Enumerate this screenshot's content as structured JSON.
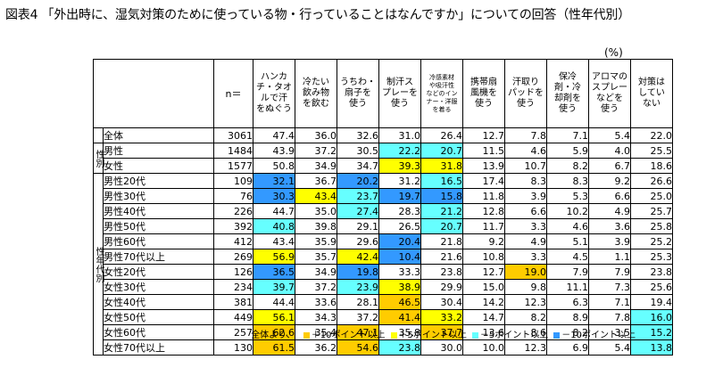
{
  "title": "図表4 「外出時に、湿気対策のために使っている物・行っていることはなんですか」についての回答（性年代別）",
  "unit": "(%)",
  "colors": {
    "plus10": "#ffcc00",
    "plus5": "#ffff00",
    "minus5": "#66ffff",
    "minus10": "#3399ff"
  },
  "chart_data": {
    "type": "table",
    "n_header": "n＝",
    "columns": [
      {
        "label": "ハンカチ・タオルで汗をぬぐう",
        "lines": [
          "ハンカ",
          "チ・タオ",
          "ルで汗",
          "をぬぐう"
        ]
      },
      {
        "label": "冷たい飲み物を飲む",
        "lines": [
          "冷たい",
          "飲み物",
          "を飲む"
        ]
      },
      {
        "label": "うちわ・扇子を使う",
        "lines": [
          "うちわ・",
          "扇子を",
          "使う"
        ]
      },
      {
        "label": "制汗スプレーを使う",
        "lines": [
          "制汗ス",
          "プレーを",
          "使う"
        ]
      },
      {
        "label": "冷感素材や吸汗性などのインナー・洋服を着る",
        "lines": [
          "冷感素材",
          "や吸汗性",
          "などのイン",
          "ナー・洋服",
          "を着る"
        ],
        "small": true
      },
      {
        "label": "携帯扇風機を使う",
        "lines": [
          "携帯扇",
          "風機を",
          "使う"
        ]
      },
      {
        "label": "汗取りパッドを使う",
        "lines": [
          "汗取り",
          "パッドを",
          "使う"
        ]
      },
      {
        "label": "保冷剤・冷却剤を使う",
        "lines": [
          "保冷",
          "剤・冷",
          "却剤を",
          "使う"
        ]
      },
      {
        "label": "アロマのスプレーなどを使う",
        "lines": [
          "アロマの",
          "スプレー",
          "などを",
          "使う"
        ]
      },
      {
        "label": "対策はしていない",
        "lines": [
          "対策は",
          "してい",
          "ない"
        ]
      }
    ],
    "rows": [
      {
        "group": "",
        "label": "全体",
        "n": "3061",
        "values": [
          "47.4",
          "36.0",
          "32.6",
          "31.0",
          "26.4",
          "12.7",
          "7.8",
          "7.1",
          "5.4",
          "22.0"
        ],
        "hl": [
          "",
          "",
          "",
          "",
          "",
          "",
          "",
          "",
          "",
          ""
        ]
      },
      {
        "group": "性別",
        "label": "男性",
        "n": "1484",
        "values": [
          "43.9",
          "37.2",
          "30.5",
          "22.2",
          "20.7",
          "11.5",
          "4.6",
          "5.9",
          "4.0",
          "25.5"
        ],
        "hl": [
          "",
          "",
          "",
          "m5",
          "m5",
          "",
          "",
          "",
          "",
          ""
        ]
      },
      {
        "group": "性別",
        "label": "女性",
        "n": "1577",
        "values": [
          "50.8",
          "34.9",
          "34.7",
          "39.3",
          "31.8",
          "13.9",
          "10.7",
          "8.2",
          "6.7",
          "18.6"
        ],
        "hl": [
          "",
          "",
          "",
          "p5",
          "p5",
          "",
          "",
          "",
          "",
          ""
        ]
      },
      {
        "group": "性年代別",
        "label": "男性20代",
        "n": "109",
        "values": [
          "32.1",
          "36.7",
          "20.2",
          "31.2",
          "16.5",
          "17.4",
          "8.3",
          "8.3",
          "9.2",
          "26.6"
        ],
        "hl": [
          "m10",
          "",
          "m10",
          "",
          "m5",
          "",
          "",
          "",
          "",
          ""
        ]
      },
      {
        "group": "性年代別",
        "label": "男性30代",
        "n": "76",
        "values": [
          "30.3",
          "43.4",
          "23.7",
          "19.7",
          "15.8",
          "11.8",
          "3.9",
          "5.3",
          "6.6",
          "25.0"
        ],
        "hl": [
          "m10",
          "p5",
          "m5",
          "m10",
          "m10",
          "",
          "",
          "",
          "",
          ""
        ]
      },
      {
        "group": "性年代別",
        "label": "男性40代",
        "n": "226",
        "values": [
          "44.7",
          "35.0",
          "27.4",
          "28.3",
          "21.2",
          "12.8",
          "6.6",
          "10.2",
          "4.9",
          "25.7"
        ],
        "hl": [
          "",
          "",
          "m5",
          "",
          "m5",
          "",
          "",
          "",
          "",
          ""
        ]
      },
      {
        "group": "性年代別",
        "label": "男性50代",
        "n": "392",
        "values": [
          "40.8",
          "39.8",
          "29.1",
          "26.5",
          "20.7",
          "11.7",
          "3.3",
          "4.6",
          "3.6",
          "25.8"
        ],
        "hl": [
          "m5",
          "",
          "",
          "",
          "m5",
          "",
          "",
          "",
          "",
          ""
        ]
      },
      {
        "group": "性年代別",
        "label": "男性60代",
        "n": "412",
        "values": [
          "43.4",
          "35.9",
          "29.6",
          "20.4",
          "21.8",
          "9.2",
          "4.9",
          "5.1",
          "3.9",
          "25.2"
        ],
        "hl": [
          "",
          "",
          "",
          "m10",
          "",
          "",
          "",
          "",
          "",
          ""
        ]
      },
      {
        "group": "性年代別",
        "label": "男性70代以上",
        "n": "269",
        "values": [
          "56.9",
          "35.7",
          "42.4",
          "10.4",
          "21.6",
          "10.8",
          "3.3",
          "4.5",
          "1.1",
          "25.3"
        ],
        "hl": [
          "p5",
          "",
          "p5",
          "m10",
          "",
          "",
          "",
          "",
          "",
          ""
        ]
      },
      {
        "group": "性年代別",
        "label": "女性20代",
        "n": "126",
        "values": [
          "36.5",
          "34.9",
          "19.8",
          "33.3",
          "23.8",
          "12.7",
          "19.0",
          "7.9",
          "7.9",
          "23.8"
        ],
        "hl": [
          "m10",
          "",
          "m10",
          "",
          "",
          "",
          "p10",
          "",
          "",
          ""
        ]
      },
      {
        "group": "性年代別",
        "label": "女性30代",
        "n": "234",
        "values": [
          "39.7",
          "37.2",
          "23.9",
          "38.9",
          "29.9",
          "15.0",
          "9.8",
          "11.1",
          "7.3",
          "25.6"
        ],
        "hl": [
          "m5",
          "",
          "m5",
          "p5",
          "",
          "",
          "",
          "",
          "",
          ""
        ]
      },
      {
        "group": "性年代別",
        "label": "女性40代",
        "n": "381",
        "values": [
          "44.4",
          "33.6",
          "28.1",
          "46.5",
          "30.4",
          "14.2",
          "12.3",
          "6.3",
          "7.1",
          "19.4"
        ],
        "hl": [
          "",
          "",
          "",
          "p10",
          "",
          "",
          "",
          "",
          "",
          ""
        ]
      },
      {
        "group": "性年代別",
        "label": "女性50代",
        "n": "449",
        "values": [
          "56.1",
          "34.3",
          "37.2",
          "41.4",
          "33.2",
          "14.7",
          "8.2",
          "8.9",
          "7.8",
          "16.0"
        ],
        "hl": [
          "p5",
          "",
          "",
          "p10",
          "p5",
          "",
          "",
          "",
          "",
          "m5"
        ]
      },
      {
        "group": "性年代別",
        "label": "女性60代",
        "n": "257",
        "values": [
          "62.6",
          "35.4",
          "47.1",
          "35.8",
          "37.7",
          "13.6",
          "8.6",
          "8.2",
          "3.5",
          "15.2"
        ],
        "hl": [
          "p10",
          "",
          "p10",
          "",
          "p10",
          "",
          "",
          "",
          "",
          "m5"
        ]
      },
      {
        "group": "性年代別",
        "label": "女性70代以上",
        "n": "130",
        "values": [
          "61.5",
          "36.2",
          "54.6",
          "23.8",
          "30.0",
          "10.0",
          "12.3",
          "6.9",
          "5.4",
          "13.8"
        ],
        "hl": [
          "p10",
          "",
          "p10",
          "m5",
          "",
          "",
          "",
          "",
          "",
          "m5"
        ]
      }
    ]
  },
  "legend": {
    "prefix": "全体より、",
    "items": [
      {
        "key": "plus10",
        "label": "＋10ポイント以上"
      },
      {
        "key": "plus5",
        "label": "＋5ポイント以上"
      },
      {
        "key": "minus5",
        "label": "－5ポイント以上"
      },
      {
        "key": "minus10",
        "label": "－10ポイント以上"
      }
    ]
  }
}
